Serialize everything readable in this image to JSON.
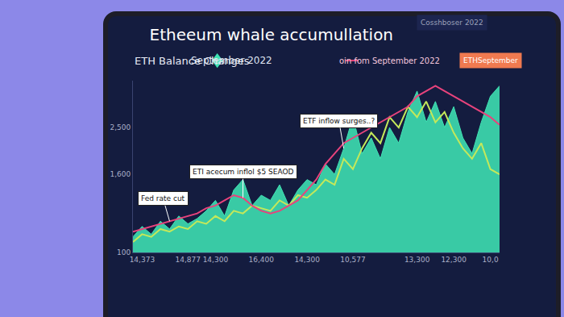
{
  "chart_data": {
    "type": "area",
    "title": "Etheeum whale accumullation",
    "subtitle": "ETH Balance Changes",
    "header_texts": [
      "September 2022",
      "Cosshboser 2022",
      "oin fom September 2022",
      "ETHSeptember"
    ],
    "categories": [
      null,
      "14,373",
      null,
      null,
      null,
      null,
      "14,877",
      null,
      null,
      "14,300",
      null,
      null,
      null,
      null,
      "16,400",
      null,
      null,
      null,
      null,
      "14,300",
      null,
      null,
      null,
      null,
      "10,577",
      null,
      null,
      null,
      null,
      null,
      null,
      "13,300",
      null,
      null,
      null,
      "12,300",
      null,
      null,
      null,
      "10,0",
      null
    ],
    "series": [
      {
        "type": "area",
        "color": "#3fe3b4",
        "values": [
          400,
          600,
          450,
          700,
          550,
          800,
          650,
          750,
          900,
          1100,
          800,
          1300,
          1500,
          1000,
          1200,
          1100,
          1400,
          1000,
          1300,
          1500,
          1400,
          1800,
          1600,
          2100,
          2700,
          2000,
          2300,
          1900,
          2500,
          2200,
          2800,
          3200,
          2600,
          3000,
          2500,
          2900,
          2300,
          2000,
          2600,
          3100,
          3300
        ]
      },
      {
        "type": "line",
        "color": "#c4e85a",
        "values": [
          300,
          450,
          400,
          550,
          500,
          600,
          550,
          700,
          650,
          800,
          700,
          900,
          850,
          1000,
          950,
          900,
          1100,
          1000,
          1200,
          1150,
          1300,
          1500,
          1400,
          1900,
          1700,
          2100,
          2400,
          2200,
          2700,
          2500,
          2900,
          2700,
          3000,
          2600,
          2800,
          2400,
          2100,
          1900,
          2200,
          1700,
          1600
        ]
      },
      {
        "type": "line",
        "color": "#e8437c",
        "values": [
          500,
          550,
          600,
          650,
          700,
          750,
          800,
          850,
          950,
          1000,
          1100,
          1200,
          1150,
          1000,
          900,
          850,
          900,
          1000,
          1100,
          1300,
          1500,
          1800,
          2000,
          2200,
          2300,
          2400,
          2500,
          2600,
          2700,
          2800,
          2900,
          3100,
          3200,
          3300,
          3200,
          3100,
          3000,
          2900,
          2800,
          2700,
          2550
        ]
      }
    ],
    "ylim": [
      100,
      3400
    ],
    "yticks": [
      100,
      {
        "value": 1600,
        "label": "1,600"
      },
      {
        "value": 2500,
        "label": "2,500"
      }
    ],
    "grid": false,
    "annotations": [
      {
        "text": "Fed rate cut",
        "x": 4,
        "y": 700
      },
      {
        "text": "ETI acecum inflol $5 SEAOD",
        "x": 12,
        "y": 1150
      },
      {
        "text": "ETF inflow surges..?",
        "x": 23,
        "y": 2100
      }
    ]
  }
}
